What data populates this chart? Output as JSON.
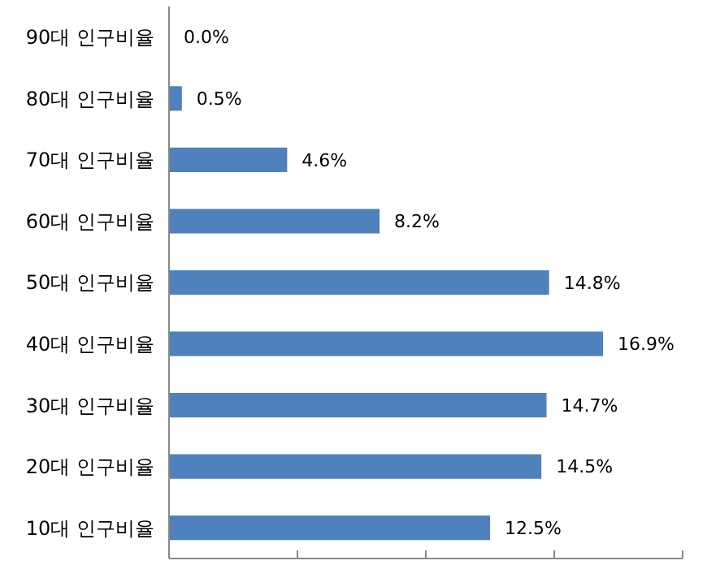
{
  "chart_data": {
    "type": "bar",
    "orientation": "horizontal",
    "categories": [
      "90대 인구비율",
      "80대 인구비율",
      "70대 인구비율",
      "60대 인구비율",
      "50대 인구비율",
      "40대 인구비율",
      "30대 인구비율",
      "20대 인구비율",
      "10대 인구비율"
    ],
    "values": [
      0.0,
      0.5,
      4.6,
      8.2,
      14.8,
      16.9,
      14.7,
      14.5,
      12.5
    ],
    "value_labels": [
      "0.0%",
      "0.5%",
      "4.6%",
      "8.2%",
      "14.8%",
      "16.9%",
      "14.7%",
      "14.5%",
      "12.5%"
    ],
    "color": "#4f81bd",
    "xlim": [
      0,
      20
    ],
    "xticks": [
      {
        "value": 0,
        "label": null
      },
      {
        "value": 5,
        "label": null
      },
      {
        "value": 10,
        "label": null
      },
      {
        "value": 15,
        "label": null
      },
      {
        "value": 20,
        "label": null
      }
    ],
    "tick_labels": "y"
  }
}
